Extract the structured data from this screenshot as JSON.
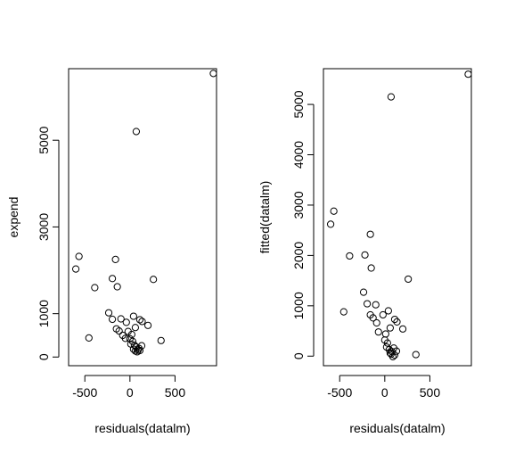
{
  "chart_data": [
    {
      "type": "scatter",
      "xlabel": "residuals(datalm)",
      "ylabel": "expend",
      "xlim": [
        -680,
        960
      ],
      "ylim": [
        -200,
        6650
      ],
      "x_ticks": [
        -500,
        0,
        500
      ],
      "x_tick_labels": [
        "-500",
        "0",
        "500"
      ],
      "y_ticks": [
        0,
        1000,
        3000,
        5000
      ],
      "y_tick_labels": [
        "0",
        "1000",
        "3000",
        "5000"
      ],
      "grid": false,
      "points": [
        {
          "x": 925,
          "y": 6540
        },
        {
          "x": 70,
          "y": 5200
        },
        {
          "x": -565,
          "y": 2320
        },
        {
          "x": -600,
          "y": 2030
        },
        {
          "x": -160,
          "y": 2250
        },
        {
          "x": 260,
          "y": 1790
        },
        {
          "x": -195,
          "y": 1810
        },
        {
          "x": -140,
          "y": 1620
        },
        {
          "x": -390,
          "y": 1600
        },
        {
          "x": -235,
          "y": 1020
        },
        {
          "x": -195,
          "y": 870
        },
        {
          "x": -100,
          "y": 880
        },
        {
          "x": -40,
          "y": 800
        },
        {
          "x": 40,
          "y": 940
        },
        {
          "x": 110,
          "y": 860
        },
        {
          "x": 135,
          "y": 820
        },
        {
          "x": 200,
          "y": 730
        },
        {
          "x": 60,
          "y": 680
        },
        {
          "x": -150,
          "y": 650
        },
        {
          "x": -120,
          "y": 600
        },
        {
          "x": -80,
          "y": 500
        },
        {
          "x": -20,
          "y": 590
        },
        {
          "x": 20,
          "y": 520
        },
        {
          "x": -50,
          "y": 430
        },
        {
          "x": 0,
          "y": 420
        },
        {
          "x": 30,
          "y": 360
        },
        {
          "x": 10,
          "y": 300
        },
        {
          "x": 50,
          "y": 270
        },
        {
          "x": 70,
          "y": 230
        },
        {
          "x": 100,
          "y": 200
        },
        {
          "x": 130,
          "y": 260
        },
        {
          "x": 40,
          "y": 180
        },
        {
          "x": 60,
          "y": 140
        },
        {
          "x": 80,
          "y": 120
        },
        {
          "x": 110,
          "y": 150
        },
        {
          "x": 90,
          "y": 160
        },
        {
          "x": -455,
          "y": 440
        },
        {
          "x": 345,
          "y": 380
        }
      ]
    },
    {
      "type": "scatter",
      "xlabel": "residuals(datalm)",
      "ylabel": "fitted(datalm)",
      "xlim": [
        -680,
        960
      ],
      "ylim": [
        -190,
        5710
      ],
      "x_ticks": [
        -500,
        0,
        500
      ],
      "x_tick_labels": [
        "-500",
        "0",
        "500"
      ],
      "y_ticks": [
        0,
        1000,
        2000,
        3000,
        4000,
        5000
      ],
      "y_tick_labels": [
        "0",
        "1000",
        "2000",
        "3000",
        "4000",
        "5000"
      ],
      "grid": false,
      "points": [
        {
          "x": 925,
          "y": 5600
        },
        {
          "x": 70,
          "y": 5150
        },
        {
          "x": -565,
          "y": 2880
        },
        {
          "x": -600,
          "y": 2620
        },
        {
          "x": -160,
          "y": 2420
        },
        {
          "x": -390,
          "y": 1990
        },
        {
          "x": -220,
          "y": 2010
        },
        {
          "x": -150,
          "y": 1750
        },
        {
          "x": 260,
          "y": 1530
        },
        {
          "x": -235,
          "y": 1270
        },
        {
          "x": -195,
          "y": 1040
        },
        {
          "x": -100,
          "y": 1020
        },
        {
          "x": -455,
          "y": 880
        },
        {
          "x": -160,
          "y": 820
        },
        {
          "x": -130,
          "y": 760
        },
        {
          "x": 40,
          "y": 900
        },
        {
          "x": -20,
          "y": 820
        },
        {
          "x": -90,
          "y": 660
        },
        {
          "x": 110,
          "y": 730
        },
        {
          "x": 135,
          "y": 680
        },
        {
          "x": 200,
          "y": 540
        },
        {
          "x": -70,
          "y": 480
        },
        {
          "x": 10,
          "y": 440
        },
        {
          "x": 60,
          "y": 560
        },
        {
          "x": 0,
          "y": 320
        },
        {
          "x": 30,
          "y": 260
        },
        {
          "x": 20,
          "y": 180
        },
        {
          "x": 50,
          "y": 130
        },
        {
          "x": 80,
          "y": 90
        },
        {
          "x": 100,
          "y": 160
        },
        {
          "x": 130,
          "y": 100
        },
        {
          "x": 70,
          "y": 40
        },
        {
          "x": 110,
          "y": 20
        },
        {
          "x": 90,
          "y": -10
        },
        {
          "x": 60,
          "y": 60
        },
        {
          "x": 345,
          "y": 30
        }
      ]
    }
  ]
}
